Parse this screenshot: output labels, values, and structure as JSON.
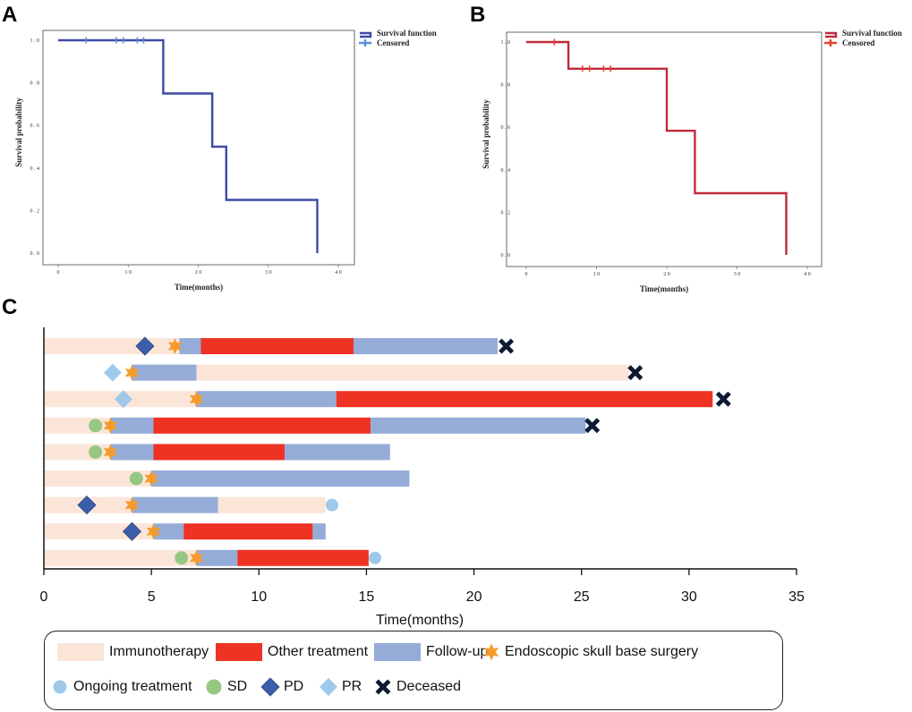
{
  "colors": {
    "immunotherapy": "#fbe5d9",
    "other_treatment": "#ee3224",
    "follow_up": "#96acd8",
    "surgery": "#f49b2c",
    "ongoing": "#9ec9ea",
    "sd": "#96c883",
    "pd": "#3c5ea9",
    "pr": "#9ec9ea",
    "deceased": "#0e1a33",
    "km_a_line": "#3f4aa6",
    "km_a_censor": "#5b8fd6",
    "km_b_line": "#c02a3c",
    "km_b_censor": "#e8452f"
  },
  "panels": {
    "a": "A",
    "b": "B",
    "c": "C"
  },
  "chart_data": [
    {
      "id": "A",
      "type": "line",
      "subtype": "kaplan-meier",
      "xlabel": "Time(months)",
      "ylabel": "Survival probability",
      "xlim": [
        0,
        40
      ],
      "ylim": [
        0,
        1.0
      ],
      "xticks": [
        0,
        10,
        20,
        30,
        40
      ],
      "xtick_labels": [
        "0",
        "1 0",
        "2 0",
        "3 0",
        "4 0"
      ],
      "yticks": [
        0,
        0.2,
        0.4,
        0.6,
        0.8,
        1.0
      ],
      "ytick_labels": [
        "0 . 0",
        "0 . 2",
        "0 . 4",
        "0 . 6",
        "0 . 8",
        "1 . 0"
      ],
      "legend": [
        "Survival function",
        "Censored"
      ],
      "legend_position": "top-right",
      "steps": [
        [
          0,
          1.0
        ],
        [
          15,
          1.0
        ],
        [
          15,
          0.75
        ],
        [
          22,
          0.75
        ],
        [
          22,
          0.5
        ],
        [
          24,
          0.5
        ],
        [
          24,
          0.25
        ],
        [
          37,
          0.25
        ],
        [
          37,
          0.0
        ]
      ],
      "censored": [
        [
          4,
          1.0
        ],
        [
          8.3,
          1.0
        ],
        [
          9.3,
          1.0
        ],
        [
          11.3,
          1.0
        ],
        [
          12.2,
          1.0
        ]
      ]
    },
    {
      "id": "B",
      "type": "line",
      "subtype": "kaplan-meier",
      "xlabel": "Time(months)",
      "ylabel": "Survival probability",
      "xlim": [
        0,
        40
      ],
      "ylim": [
        0,
        1.0
      ],
      "xticks": [
        0,
        10,
        20,
        30,
        40
      ],
      "xtick_labels": [
        "0",
        "1 0",
        "2 0",
        "3 0",
        "4 0"
      ],
      "yticks": [
        0,
        0.2,
        0.4,
        0.6,
        0.8,
        1.0
      ],
      "ytick_labels": [
        "0 . 0",
        "0 . 2",
        "0 . 4",
        "0 . 6",
        "0 . 8",
        "1 . 0"
      ],
      "legend": [
        "Survival function",
        "Censored"
      ],
      "legend_position": "top-right",
      "steps": [
        [
          0,
          1.0
        ],
        [
          6,
          1.0
        ],
        [
          6,
          0.875
        ],
        [
          20,
          0.875
        ],
        [
          20,
          0.583
        ],
        [
          24,
          0.583
        ],
        [
          24,
          0.29
        ],
        [
          37,
          0.29
        ],
        [
          37,
          0.0
        ]
      ],
      "censored": [
        [
          4,
          1.0
        ],
        [
          8,
          0.875
        ],
        [
          9,
          0.875
        ],
        [
          11,
          0.875
        ],
        [
          12,
          0.875
        ]
      ]
    },
    {
      "id": "C",
      "type": "bar",
      "subtype": "swimmer",
      "xlabel": "Time(months)",
      "xlim": [
        0,
        35
      ],
      "xticks": [
        0,
        5,
        10,
        15,
        20,
        25,
        30,
        35
      ],
      "xtick_labels": [
        "0",
        "5",
        "10",
        "15",
        "20",
        "25",
        "30",
        "35"
      ],
      "series": [
        "Immunotherapy",
        "Other treatment",
        "Follow-up"
      ],
      "patients": [
        {
          "segments": [
            [
              "immunotherapy",
              0,
              6.3
            ],
            [
              "follow_up",
              6.3,
              7.3
            ],
            [
              "other_treatment",
              7.3,
              14.4
            ],
            [
              "follow_up",
              14.4,
              21.1
            ]
          ],
          "events": [
            [
              "pd",
              4.7
            ],
            [
              "surgery",
              6.1
            ],
            [
              "deceased",
              21.5
            ]
          ]
        },
        {
          "segments": [
            [
              "follow_up",
              4.1,
              7.1
            ],
            [
              "immunotherapy",
              7.1,
              27.2
            ]
          ],
          "events": [
            [
              "pr",
              3.2
            ],
            [
              "surgery",
              4.1
            ],
            [
              "deceased",
              27.5
            ]
          ]
        },
        {
          "segments": [
            [
              "immunotherapy",
              0,
              7.1
            ],
            [
              "follow_up",
              7.1,
              13.6
            ],
            [
              "other_treatment",
              13.6,
              31.1
            ]
          ],
          "events": [
            [
              "pr",
              3.7
            ],
            [
              "surgery",
              7.1
            ],
            [
              "deceased",
              31.6
            ]
          ]
        },
        {
          "segments": [
            [
              "immunotherapy",
              0,
              3.1
            ],
            [
              "follow_up",
              3.1,
              5.1
            ],
            [
              "other_treatment",
              5.1,
              15.2
            ],
            [
              "follow_up",
              15.2,
              25.2
            ]
          ],
          "events": [
            [
              "sd",
              2.4
            ],
            [
              "surgery",
              3.1
            ],
            [
              "deceased",
              25.5
            ]
          ]
        },
        {
          "segments": [
            [
              "immunotherapy",
              0,
              3.1
            ],
            [
              "follow_up",
              3.1,
              5.1
            ],
            [
              "other_treatment",
              5.1,
              11.2
            ],
            [
              "follow_up",
              11.2,
              16.1
            ]
          ],
          "events": [
            [
              "sd",
              2.4
            ],
            [
              "surgery",
              3.1
            ]
          ]
        },
        {
          "segments": [
            [
              "immunotherapy",
              0,
              5.0
            ],
            [
              "follow_up",
              5.0,
              17.0
            ]
          ],
          "events": [
            [
              "sd",
              4.3
            ],
            [
              "surgery",
              5.0
            ]
          ]
        },
        {
          "segments": [
            [
              "immunotherapy",
              0,
              4.1
            ],
            [
              "follow_up",
              4.1,
              8.1
            ],
            [
              "immunotherapy",
              8.1,
              13.1
            ]
          ],
          "events": [
            [
              "pd",
              2.0
            ],
            [
              "surgery",
              4.1
            ],
            [
              "ongoing",
              13.4
            ]
          ]
        },
        {
          "segments": [
            [
              "immunotherapy",
              0,
              5.1
            ],
            [
              "follow_up",
              5.1,
              6.5
            ],
            [
              "other_treatment",
              6.5,
              12.5
            ],
            [
              "follow_up",
              12.5,
              13.1
            ]
          ],
          "events": [
            [
              "pd",
              4.1
            ],
            [
              "surgery",
              5.1
            ]
          ]
        },
        {
          "segments": [
            [
              "immunotherapy",
              0,
              7.1
            ],
            [
              "follow_up",
              7.1,
              9.0
            ],
            [
              "other_treatment",
              9.0,
              15.1
            ]
          ],
          "events": [
            [
              "sd",
              6.4
            ],
            [
              "surgery",
              7.1
            ],
            [
              "ongoing",
              15.4
            ]
          ]
        }
      ],
      "legend": [
        {
          "key": "immunotherapy",
          "label": "Immunotherapy",
          "kind": "swatch"
        },
        {
          "key": "other_treatment",
          "label": "Other treatment",
          "kind": "swatch"
        },
        {
          "key": "follow_up",
          "label": "Follow-up",
          "kind": "swatch"
        },
        {
          "key": "surgery",
          "label": "Endoscopic skull base surgery",
          "kind": "star"
        },
        {
          "key": "ongoing",
          "label": "Ongoing treatment",
          "kind": "circle"
        },
        {
          "key": "sd",
          "label": "SD",
          "kind": "circle"
        },
        {
          "key": "pd",
          "label": "PD",
          "kind": "diamond"
        },
        {
          "key": "pr",
          "label": "PR",
          "kind": "diamond"
        },
        {
          "key": "deceased",
          "label": "Deceased",
          "kind": "cross"
        }
      ],
      "legend_position": "bottom"
    }
  ]
}
